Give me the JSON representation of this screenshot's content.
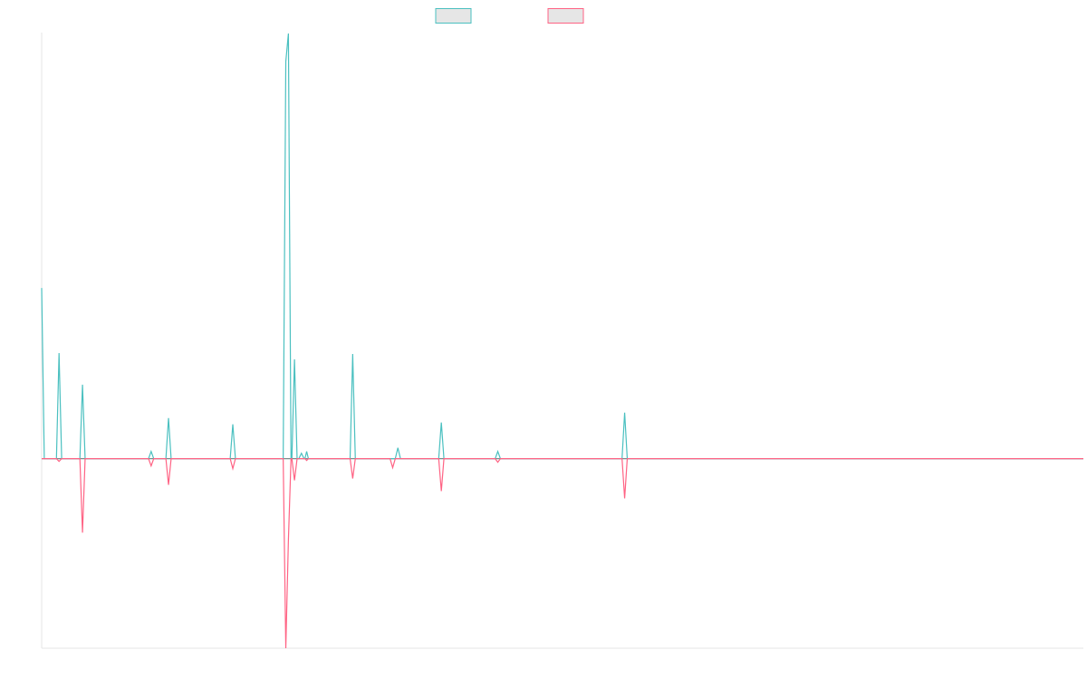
{
  "colors": {
    "positive": "#4bc0c0",
    "negative": "#ff6384",
    "legend_fill": "#e6e6e6",
    "axis": "#e6e6e6",
    "baseline": "#7a8c8c"
  },
  "chart_data": {
    "type": "line",
    "title": "",
    "xlabel": "",
    "ylabel": "",
    "legend": {
      "position": "top-center",
      "show_labels": false
    },
    "grid": false,
    "xlim": [
      0,
      1199
    ],
    "ylim": [
      -210,
      472
    ],
    "series": [
      {
        "color": "#4bc0c0",
        "points": [
          [
            0,
            189
          ],
          [
            3,
            0
          ],
          [
            17,
            0
          ],
          [
            20,
            117
          ],
          [
            23,
            0
          ],
          [
            44,
            0
          ],
          [
            47,
            82
          ],
          [
            50,
            0
          ],
          [
            123,
            0
          ],
          [
            126,
            8
          ],
          [
            129,
            0
          ],
          [
            143,
            0
          ],
          [
            146,
            45
          ],
          [
            149,
            0
          ],
          [
            217,
            0
          ],
          [
            220,
            38
          ],
          [
            223,
            0
          ],
          [
            278,
            0
          ],
          [
            281,
            440
          ],
          [
            284,
            471
          ],
          [
            287,
            0
          ],
          [
            288,
            0
          ],
          [
            291,
            110
          ],
          [
            294,
            0
          ],
          [
            296,
            0
          ],
          [
            299,
            6
          ],
          [
            302,
            0
          ],
          [
            303,
            0
          ],
          [
            305,
            8
          ],
          [
            307,
            0
          ],
          [
            355,
            0
          ],
          [
            358,
            116
          ],
          [
            361,
            0
          ],
          [
            407,
            0
          ],
          [
            410,
            12
          ],
          [
            413,
            0
          ],
          [
            457,
            0
          ],
          [
            460,
            40
          ],
          [
            463,
            0
          ],
          [
            522,
            0
          ],
          [
            525,
            8
          ],
          [
            528,
            0
          ],
          [
            668,
            0
          ],
          [
            671,
            51
          ],
          [
            674,
            0
          ],
          [
            1199,
            0
          ]
        ]
      },
      {
        "color": "#ff6384",
        "points": [
          [
            0,
            0
          ],
          [
            17,
            0
          ],
          [
            20,
            -3
          ],
          [
            23,
            0
          ],
          [
            44,
            0
          ],
          [
            47,
            -82
          ],
          [
            50,
            0
          ],
          [
            123,
            0
          ],
          [
            126,
            -8
          ],
          [
            129,
            0
          ],
          [
            143,
            0
          ],
          [
            146,
            -29
          ],
          [
            149,
            0
          ],
          [
            217,
            0
          ],
          [
            220,
            -11
          ],
          [
            223,
            0
          ],
          [
            278,
            0
          ],
          [
            281,
            -210
          ],
          [
            284,
            -90
          ],
          [
            287,
            0
          ],
          [
            288,
            0
          ],
          [
            291,
            -24
          ],
          [
            294,
            0
          ],
          [
            303,
            0
          ],
          [
            305,
            -2
          ],
          [
            307,
            0
          ],
          [
            355,
            0
          ],
          [
            358,
            -22
          ],
          [
            361,
            0
          ],
          [
            401,
            0
          ],
          [
            404,
            -10
          ],
          [
            407,
            0
          ],
          [
            457,
            0
          ],
          [
            460,
            -36
          ],
          [
            463,
            0
          ],
          [
            522,
            0
          ],
          [
            525,
            -4
          ],
          [
            528,
            0
          ],
          [
            668,
            0
          ],
          [
            671,
            -44
          ],
          [
            674,
            0
          ],
          [
            1199,
            0
          ]
        ]
      }
    ]
  }
}
